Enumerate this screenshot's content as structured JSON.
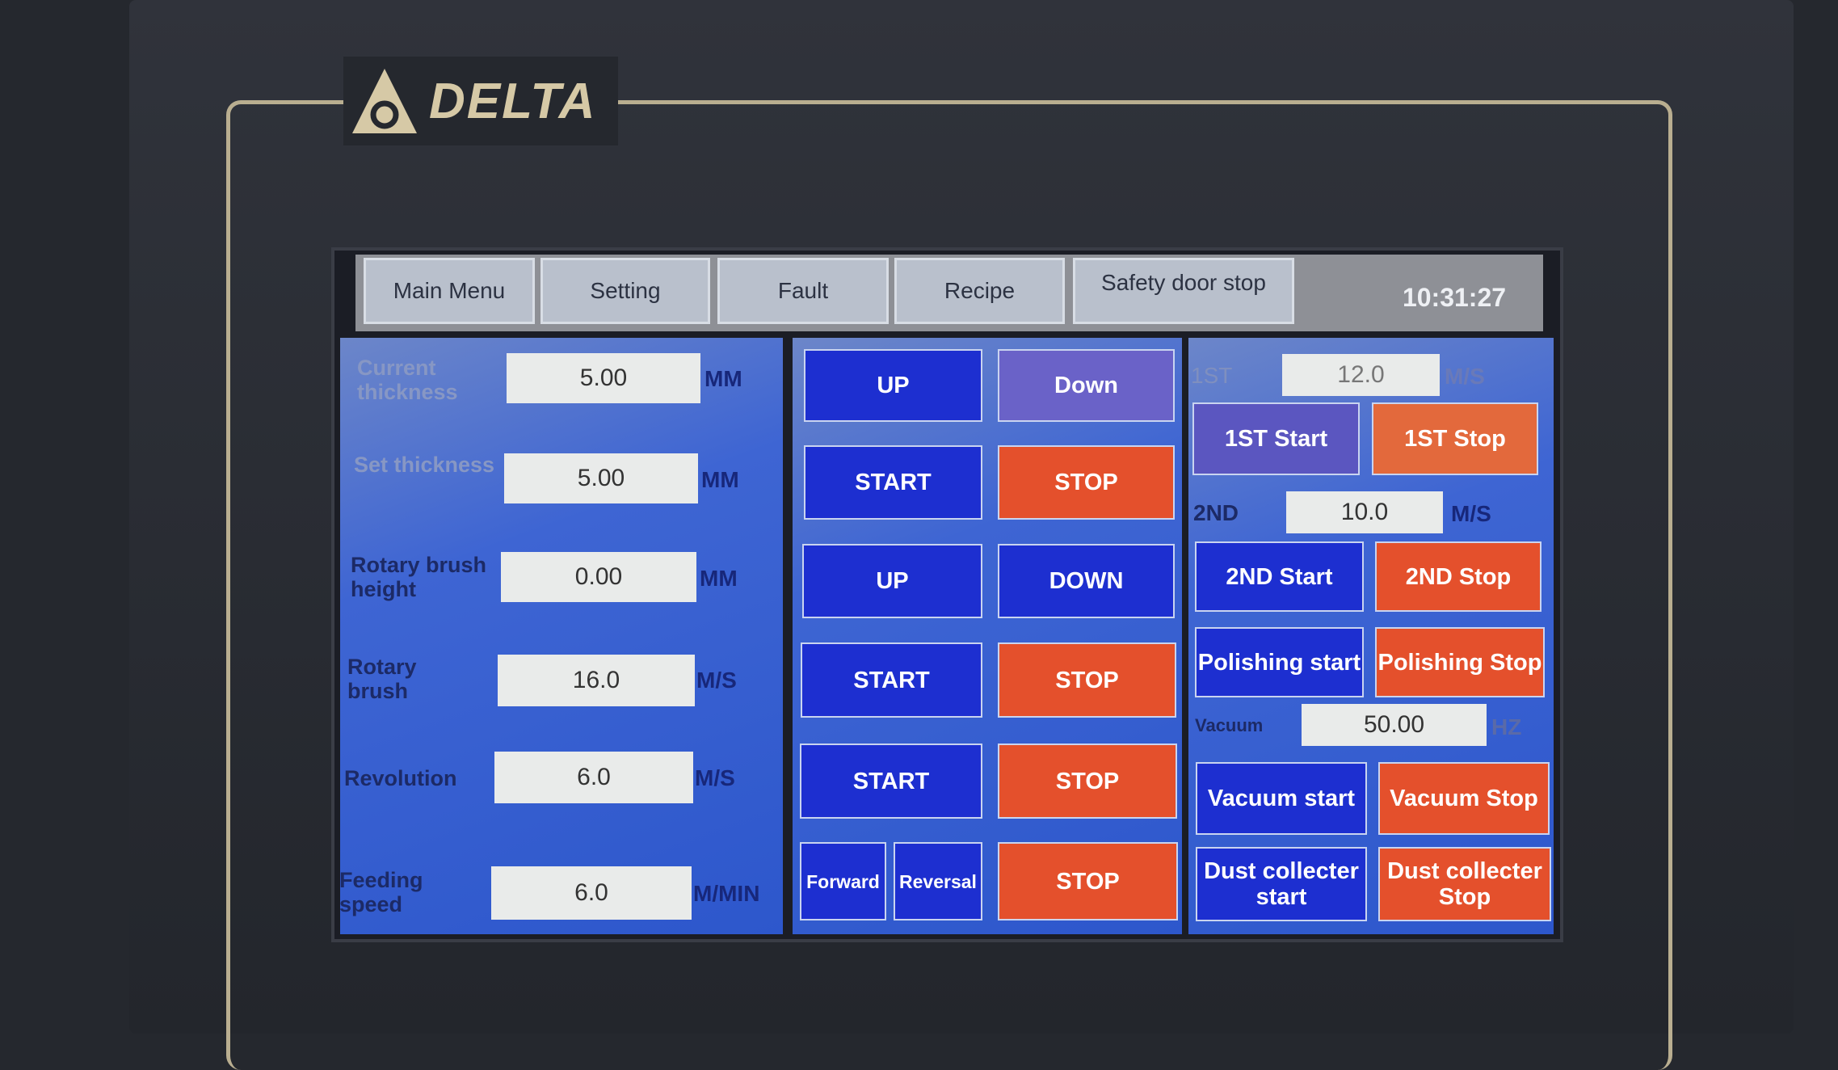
{
  "brand": {
    "logo_text": "DELTA"
  },
  "tabs": [
    "Main Menu",
    "Setting",
    "Fault",
    "Recipe",
    "Safety door stop"
  ],
  "time": "10:31:27",
  "left": [
    {
      "label": "Current thickness",
      "value": "5.00",
      "unit": "MM"
    },
    {
      "label": "Set thickness",
      "value": "5.00",
      "unit": "MM"
    },
    {
      "label": "Rotary brush height",
      "value": "0.00",
      "unit": "MM"
    },
    {
      "label": "Rotary brush",
      "value": "16.0",
      "unit": "M/S"
    },
    {
      "label": "Revolution",
      "value": "6.0",
      "unit": "M/S"
    },
    {
      "label": "Feeding speed",
      "value": "6.0",
      "unit": "M/MIN"
    }
  ],
  "middle": {
    "up1": "UP",
    "down1": "Down",
    "start1": "START",
    "stop1": "STOP",
    "up2": "UP",
    "down2": "DOWN",
    "start2": "START",
    "stop2": "STOP",
    "start3": "START",
    "stop3": "STOP",
    "forward": "Forward",
    "reversal": "Reversal",
    "stop4": "STOP"
  },
  "right": {
    "first_label": "1ST",
    "first_value": "12.0",
    "first_unit": "M/S",
    "first_start": "1ST Start",
    "first_stop": "1ST Stop",
    "second_label": "2ND",
    "second_value": "10.0",
    "second_unit": "M/S",
    "second_start": "2ND Start",
    "second_stop": "2ND Stop",
    "polishing_start": "Polishing start",
    "polishing_stop": "Polishing Stop",
    "vacuum_label": "Vacuum",
    "vacuum_value": "50.00",
    "vacuum_unit": "HZ",
    "vacuum_start": "Vacuum start",
    "vacuum_stop": "Vacuum Stop",
    "dust_start": "Dust collecter start",
    "dust_stop": "Dust collecter Stop"
  },
  "colors": {
    "start_blue": "#1d2fd0",
    "stop_red": "#e4502c",
    "panel_blue": "#2d57cc"
  }
}
